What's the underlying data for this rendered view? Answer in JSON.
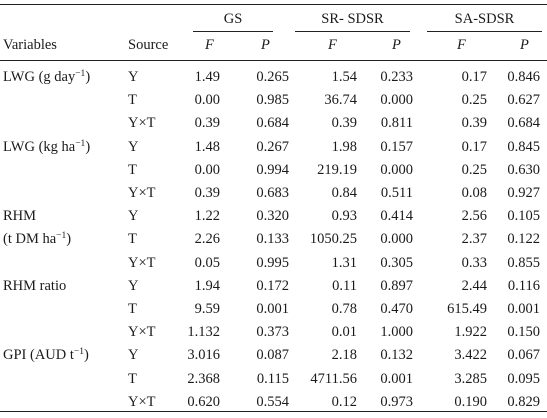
{
  "header": {
    "group_gs": "GS",
    "group_sr": "SR- SDSR",
    "group_sa": "SA-SDSR",
    "col_variables": "Variables",
    "col_source": "Source",
    "col_f": "F",
    "col_p": "P"
  },
  "rows": [
    {
      "var_main": "LWG (g day",
      "var_sup": "−1",
      "var_tail": ")",
      "source": "Y",
      "gs_f": "1.49",
      "gs_p": "0.265",
      "sr_f": "1.54",
      "sr_p": "0.233",
      "sa_f": "0.17",
      "sa_p": "0.846"
    },
    {
      "source": "T",
      "gs_f": "0.00",
      "gs_p": "0.985",
      "sr_f": "36.74",
      "sr_p": "0.000",
      "sa_f": "0.25",
      "sa_p": "0.627"
    },
    {
      "source": "Y×T",
      "gs_f": "0.39",
      "gs_p": "0.684",
      "sr_f": "0.39",
      "sr_p": "0.811",
      "sa_f": "0.39",
      "sa_p": "0.684"
    },
    {
      "var_main": "LWG (kg ha",
      "var_sup": "−1",
      "var_tail": ")",
      "source": "Y",
      "gs_f": "1.48",
      "gs_p": "0.267",
      "sr_f": "1.98",
      "sr_p": "0.157",
      "sa_f": "0.17",
      "sa_p": "0.845"
    },
    {
      "source": "T",
      "gs_f": "0.00",
      "gs_p": "0.994",
      "sr_f": "219.19",
      "sr_p": "0.000",
      "sa_f": "0.25",
      "sa_p": "0.630"
    },
    {
      "source": "Y×T",
      "gs_f": "0.39",
      "gs_p": "0.683",
      "sr_f": "0.84",
      "sr_p": "0.511",
      "sa_f": "0.08",
      "sa_p": "0.927"
    },
    {
      "var_main": "RHM",
      "source": "Y",
      "gs_f": "1.22",
      "gs_p": "0.320",
      "sr_f": "0.93",
      "sr_p": "0.414",
      "sa_f": "2.56",
      "sa_p": "0.105"
    },
    {
      "var_main": "(t DM ha",
      "var_sup": "−1",
      "var_tail": ")",
      "source": "T",
      "gs_f": "2.26",
      "gs_p": "0.133",
      "sr_f": "1050.25",
      "sr_p": "0.000",
      "sa_f": "2.37",
      "sa_p": "0.122"
    },
    {
      "source": "Y×T",
      "gs_f": "0.05",
      "gs_p": "0.995",
      "sr_f": "1.31",
      "sr_p": "0.305",
      "sa_f": "0.33",
      "sa_p": "0.855"
    },
    {
      "var_main": "RHM ratio",
      "source": "Y",
      "gs_f": "1.94",
      "gs_p": "0.172",
      "sr_f": "0.11",
      "sr_p": "0.897",
      "sa_f": "2.44",
      "sa_p": "0.116"
    },
    {
      "source": "T",
      "gs_f": "9.59",
      "gs_p": "0.001",
      "sr_f": "0.78",
      "sr_p": "0.470",
      "sa_f": "615.49",
      "sa_p": "0.001"
    },
    {
      "source": "Y×T",
      "gs_f": "1.132",
      "gs_p": "0.373",
      "sr_f": "0.01",
      "sr_p": "1.000",
      "sa_f": "1.922",
      "sa_p": "0.150"
    },
    {
      "var_main": "GPI (AUD t",
      "var_sup": "−1",
      "var_tail": ")",
      "source": "Y",
      "gs_f": "3.016",
      "gs_p": "0.087",
      "sr_f": "2.18",
      "sr_p": "0.132",
      "sa_f": "3.422",
      "sa_p": "0.067"
    },
    {
      "source": "T",
      "gs_f": "2.368",
      "gs_p": "0.115",
      "sr_f": "4711.56",
      "sr_p": "0.001",
      "sa_f": "3.285",
      "sa_p": "0.095"
    },
    {
      "source": "Y×T",
      "gs_f": "0.620",
      "gs_p": "0.554",
      "sr_f": "0.12",
      "sr_p": "0.973",
      "sa_f": "0.190",
      "sa_p": "0.829"
    }
  ]
}
